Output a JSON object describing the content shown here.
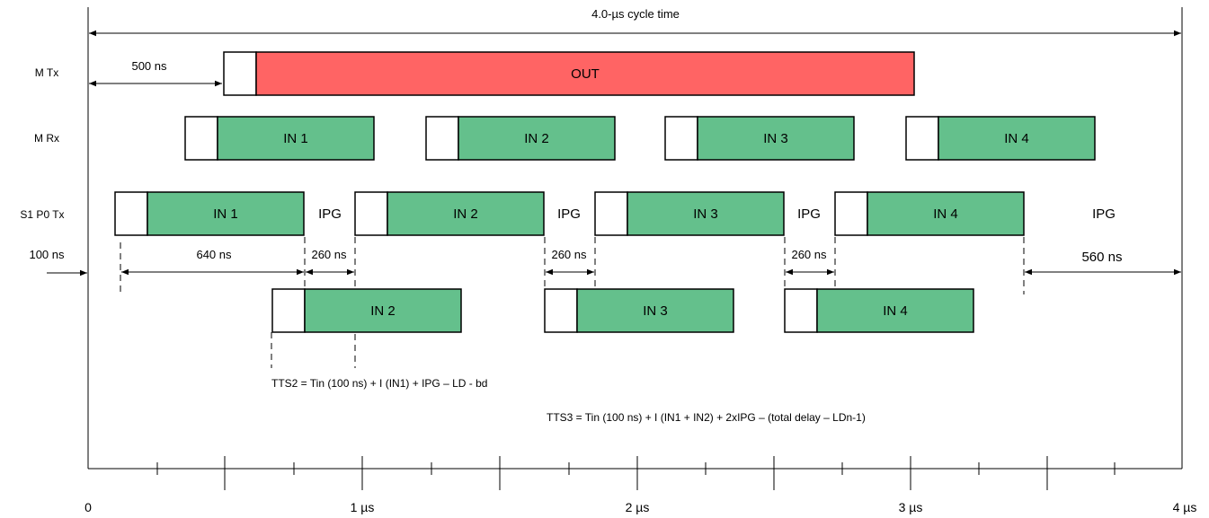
{
  "cycle_label": "4.0-µs cycle time",
  "rows": {
    "mtx": "M Tx",
    "mrx": "M Rx",
    "s1p0tx": "S1 P0 Tx"
  },
  "boxes": {
    "out": "OUT",
    "mrx": [
      "IN 1",
      "IN 2",
      "IN 3",
      "IN 4"
    ],
    "s1p0tx": [
      "IN 1",
      "IN 2",
      "IN 3",
      "IN 4"
    ],
    "bottom": [
      "IN 2",
      "IN 3",
      "IN 4"
    ]
  },
  "ipg_label": "IPG",
  "durations": {
    "offset_500": "500 ns",
    "offset_100": "100 ns",
    "frame_640": "640 ns",
    "ipg_260": "260 ns",
    "tail_560": "560 ns"
  },
  "formulas": {
    "tts2": "TTS2 = Tin (100 ns) + I (IN1) + IPG – LD - bd",
    "tts3": "TTS3 = Tin (100 ns) + I (IN1 + IN2) + 2xIPG – (total delay – LDn-1)"
  },
  "axis": {
    "ticks": [
      "0",
      "1 µs",
      "2 µs",
      "3 µs",
      "4 µs"
    ]
  },
  "colors": {
    "out_fill": "#ff6464",
    "in_fill": "#64c08c",
    "header_fill": "#ffffff",
    "stroke": "#000000"
  }
}
